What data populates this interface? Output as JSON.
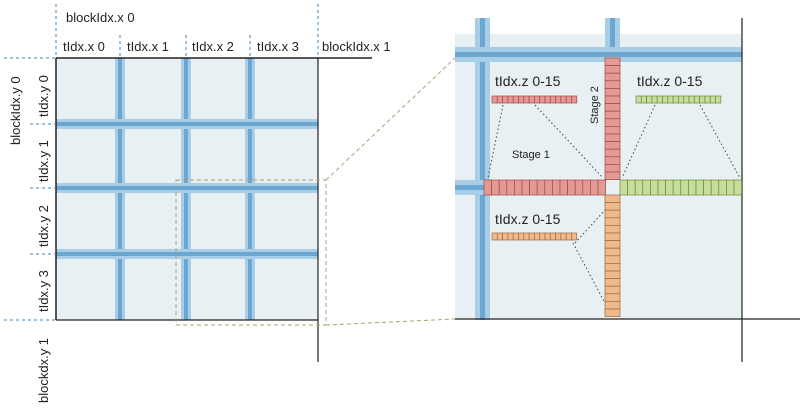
{
  "colors": {
    "cell_fill": "#e8f0f4",
    "block_fill": "#e8f0f4",
    "grid_blue": "#6aa6d0",
    "grid_blue_light": "#a8cde6",
    "border_black": "#222222",
    "dashed_blue": "#3a86c0",
    "dashed_zoom": "#b0a070",
    "red_strip": "#e39a95",
    "red_cell_line": "#a04a44",
    "green_strip": "#c6dd9c",
    "green_cell_line": "#6a8a3a",
    "orange_strip": "#f0b98c",
    "orange_cell_line": "#a06a3a"
  },
  "labels": {
    "blockidx_x0": "blockIdx.x 0",
    "blockidx_x1": "blockIdx.x 1",
    "tidx_x": [
      "tIdx.x 0",
      "tIdx.x 1",
      "tIdx.x 2",
      "tIdx.x 3"
    ],
    "blockidx_y0": "blockIdx.y 0",
    "blockidx_y1": "blockdx.y 1",
    "tidx_y": [
      "tIdx.y 0",
      "tIdx.y 1",
      "tIdx.y 2",
      "tIdx.y 3"
    ],
    "tidx_z_red": "tIdx.z 0-15",
    "tidx_z_green": "tIdx.z 0-15",
    "tidx_z_orange": "tIdx.z 0-15",
    "stage1": "Stage 1",
    "stage2": "Stage 2"
  }
}
